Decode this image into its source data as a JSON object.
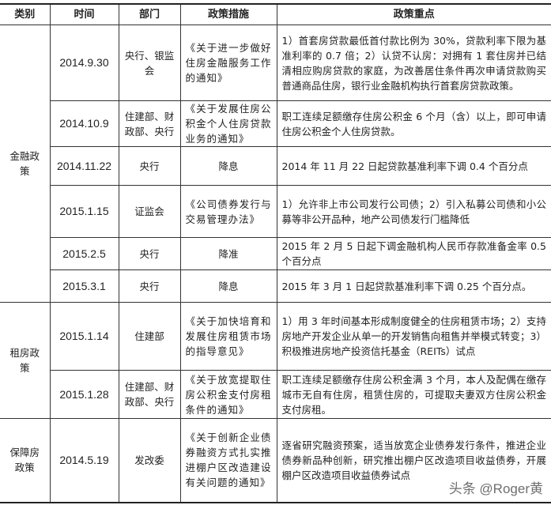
{
  "headers": [
    "类别",
    "时间",
    "部门",
    "政策措施",
    "政策重点"
  ],
  "groups": [
    {
      "category": "金融政策",
      "rows": [
        {
          "date": "2014.9.30",
          "dept": "央行、银监会",
          "measure": "《关于进一步做好住房金融服务工作的通知》",
          "focus": "1）首套房贷款最低首付款比例为 30%，贷款利率下限为基准利率的 0.7 倍；2）认贷不认房：对拥有 1 套住房并已结清相应购房贷款的家庭，为改善居住条件再次申请贷款购买普通商品住房，银行业金融机构执行首套房贷款政策。"
        },
        {
          "date": "2014.10.9",
          "dept": "住建部、财政部、央行",
          "measure": "《关于发展住房公积金个人住房贷款业务的通知》",
          "focus": "职工连续足额缴存住房公积金 6 个月（含）以上，即可申请住房公积金个人住房贷款。"
        },
        {
          "date": "2014.11.22",
          "dept": "央行",
          "measure": "降息",
          "focus": "2014 年 11 月 22 日起贷款基准利率下调 0.4 个百分点"
        },
        {
          "date": "2015.1.15",
          "dept": "证监会",
          "measure": "《公司债券发行与交易管理办法》",
          "focus": "1）允许非上市公司发行公司债；2）引入私募公司债和小公募等非公开品种，地产公司债发行门槛降低"
        },
        {
          "date": "2015.2.5",
          "dept": "央行",
          "measure": "降准",
          "focus": "2015 年 2 月 5 日起下调金融机构人民币存款准备金率 0.5 个百分点"
        },
        {
          "date": "2015.3.1",
          "dept": "央行",
          "measure": "降息",
          "focus": "2015 年 3 月 1 日起贷款基准利率下调 0.25 个百分点。"
        }
      ]
    },
    {
      "category": "租房政策",
      "rows": [
        {
          "date": "2015.1.14",
          "dept": "住建部",
          "measure": "《关于加快培育和发展住房租赁市场的指导意见》",
          "focus": "1）用 3 年时间基本形成制度健全的住房租赁市场；2）支持房地产开发企业从单一的开发销售向租售并举模式转变；3）积极推进房地产投资信托基金（REITs）试点"
        },
        {
          "date": "2015.1.28",
          "dept": "住建部、财政部、央行",
          "measure": "《关于放宽提取住房公积金支付房租条件的通知》",
          "focus": "职工连续足额缴存住房公积金满 3 个月，本人及配偶在缴存城市无自有住房，租赁住房的，可提取夫妻双方住房公积金支付房租。"
        }
      ]
    },
    {
      "category": "保障房政策",
      "rows": [
        {
          "date": "2014.5.19",
          "dept": "发改委",
          "measure": "《关于创新企业债券融资方式扎实推进棚户区改造建设有关问题的通知》",
          "focus": "逐省研究融资预案，适当放宽企业债券发行条件，推进企业债券新品种创新，研究推出棚户区改造项目收益债券，开展棚户区改造项目收益债券试点"
        }
      ]
    }
  ],
  "watermark": "头条 @Roger黄"
}
